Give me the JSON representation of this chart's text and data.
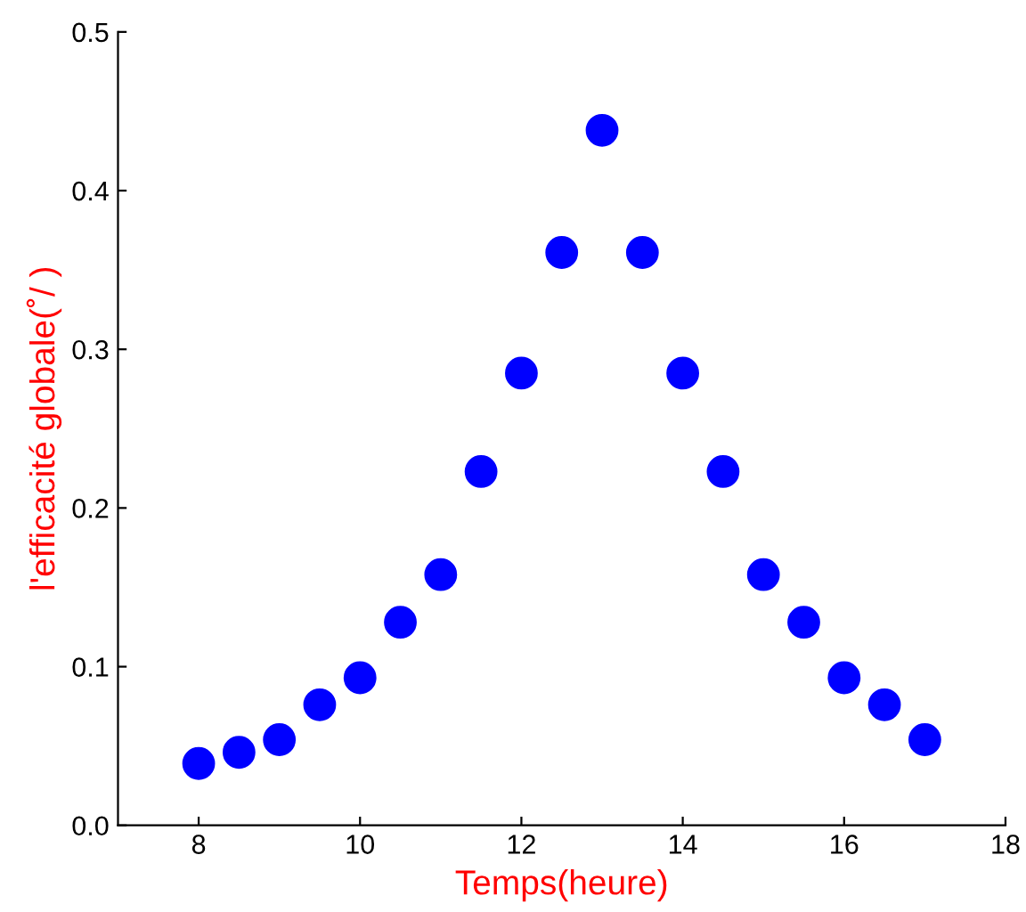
{
  "chart_data": {
    "type": "scatter",
    "xlabel": "Temps(heure)",
    "ylabel": "l'efficacité globale(˚/ )",
    "x": [
      8,
      8.5,
      9,
      9.5,
      10,
      10.5,
      11,
      11.5,
      12,
      12.5,
      13,
      13.5,
      14,
      14.5,
      15,
      15.5,
      16,
      16.5,
      17
    ],
    "series": [
      {
        "color": "#0000ff",
        "values": [
          0.039,
          0.046,
          0.054,
          0.076,
          0.093,
          0.128,
          0.158,
          0.223,
          0.285,
          0.361,
          0.438,
          0.361,
          0.285,
          0.223,
          0.158,
          0.128,
          0.093,
          0.076,
          0.054
        ]
      }
    ],
    "xlim": [
      7,
      18
    ],
    "xticks": [
      8,
      10,
      12,
      14,
      16,
      {
        "value": 18,
        "label": "18"
      }
    ],
    "ylim": [
      0,
      0.5
    ],
    "yticks": [
      {
        "value": 0,
        "label": "0.0"
      },
      0.1,
      0.2,
      0.3,
      0.4,
      0.5
    ],
    "marker": "circle",
    "grid": false,
    "legend": false
  }
}
